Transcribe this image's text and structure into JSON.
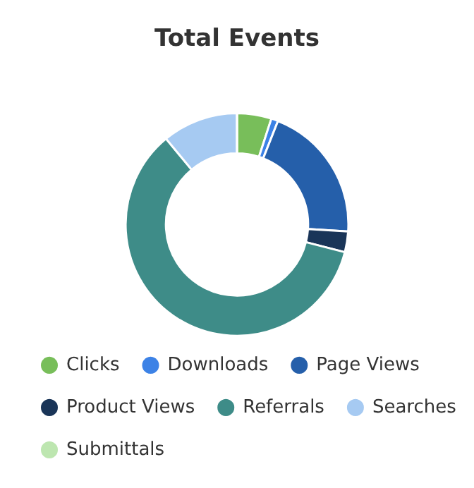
{
  "chart_data": {
    "type": "donut",
    "title": "Total Events",
    "categories": [
      "Clicks",
      "Downloads",
      "Page Views",
      "Product Views",
      "Referrals",
      "Searches",
      "Submittals"
    ],
    "values": [
      5,
      1,
      20,
      3,
      60,
      11,
      0
    ],
    "colors": [
      "#78be5a",
      "#3c82e6",
      "#255faa",
      "#1a3558",
      "#3e8c88",
      "#a6caf2",
      "#bde6b0"
    ],
    "legend": "bottom"
  }
}
